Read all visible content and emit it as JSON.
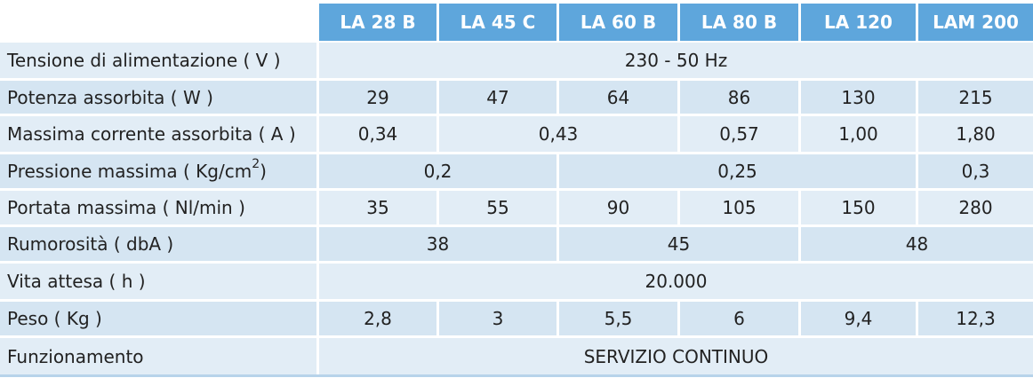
{
  "header": {
    "models": [
      "LA 28 B",
      "LA 45 C",
      "LA 60 B",
      "LA 80 B",
      "LA 120",
      "LAM 200"
    ]
  },
  "rows": [
    {
      "label": "Tensione di alimentazione ( V )",
      "values": [
        "230 - 50 Hz"
      ]
    },
    {
      "label": "Potenza assorbita ( W )",
      "values": [
        "29",
        "47",
        "64",
        "86",
        "130",
        "215"
      ]
    },
    {
      "label": "Massima corrente assorbita ( A )",
      "values": [
        "0,34",
        "0,43",
        "0,57",
        "1,00",
        "1,80"
      ]
    },
    {
      "label": "Pressione massima ( Kg/cm",
      "label_sup": "2",
      "label_end": ")",
      "values": [
        "0,2",
        "0,25",
        "0,3"
      ]
    },
    {
      "label": "Portata massima ( Nl/min )",
      "values": [
        "35",
        "55",
        "90",
        "105",
        "150",
        "280"
      ]
    },
    {
      "label": "Rumorosità ( dbA )",
      "values": [
        "38",
        "45",
        "48"
      ]
    },
    {
      "label": "Vita attesa ( h )",
      "values": [
        "20.000"
      ]
    },
    {
      "label": "Peso ( Kg )",
      "values": [
        "2,8",
        "3",
        "5,5",
        "6",
        "9,4",
        "12,3"
      ]
    },
    {
      "label": "Funzionamento",
      "values": [
        "SERVIZIO CONTINUO"
      ]
    }
  ]
}
